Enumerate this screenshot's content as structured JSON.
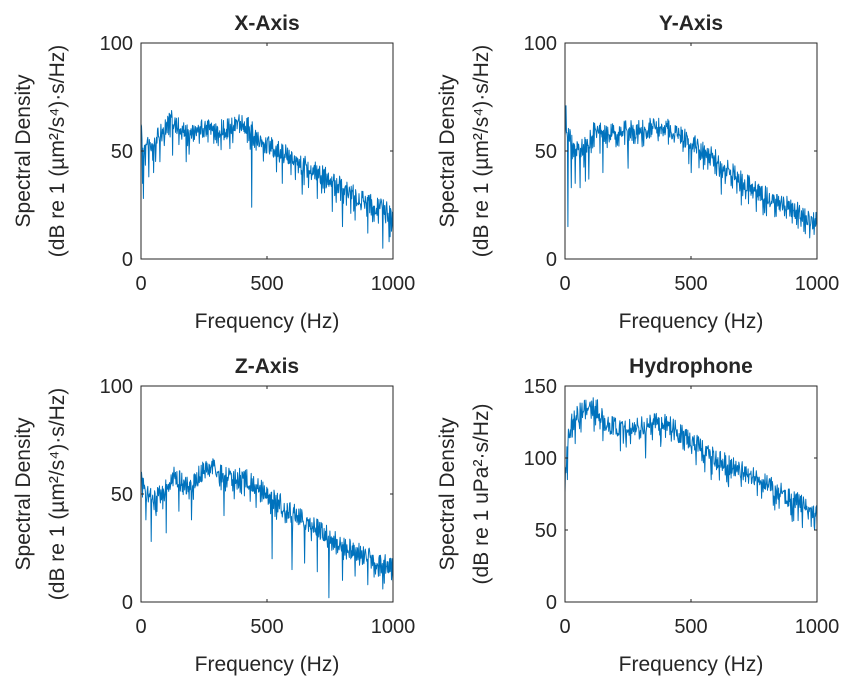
{
  "series_color": "#0072BD",
  "chart_data": [
    {
      "type": "line",
      "title": "X-Axis",
      "xlabel": "Frequency (Hz)",
      "ylabel_line1": "Spectral Density",
      "ylabel_line2": "(dB re 1 (µm²/s⁴)·s/Hz)",
      "xlim": [
        0,
        1000
      ],
      "ylim": [
        0,
        100
      ],
      "xticks": [
        0,
        500,
        1000
      ],
      "yticks": [
        0,
        50,
        100
      ],
      "grid": false,
      "profile": {
        "x": [
          0,
          5,
          15,
          30,
          60,
          90,
          110,
          130,
          160,
          200,
          250,
          300,
          350,
          400,
          420,
          450,
          500,
          550,
          600,
          650,
          700,
          750,
          800,
          850,
          900,
          950,
          1000
        ],
        "y": [
          62,
          55,
          50,
          53,
          55,
          60,
          66,
          64,
          60,
          58,
          61,
          60,
          61,
          63,
          62,
          58,
          53,
          50,
          47,
          44,
          40,
          37,
          33,
          30,
          27,
          24,
          20
        ]
      },
      "dips": [
        {
          "x": 5,
          "y": 35
        },
        {
          "x": 10,
          "y": 28
        },
        {
          "x": 30,
          "y": 38
        },
        {
          "x": 50,
          "y": 40
        },
        {
          "x": 75,
          "y": 45
        },
        {
          "x": 125,
          "y": 48
        },
        {
          "x": 180,
          "y": 45
        },
        {
          "x": 440,
          "y": 24
        },
        {
          "x": 560,
          "y": 35
        },
        {
          "x": 640,
          "y": 30
        },
        {
          "x": 700,
          "y": 28
        },
        {
          "x": 760,
          "y": 22
        },
        {
          "x": 800,
          "y": 15
        },
        {
          "x": 850,
          "y": 18
        },
        {
          "x": 900,
          "y": 12
        },
        {
          "x": 960,
          "y": 5
        },
        {
          "x": 985,
          "y": 8
        }
      ]
    },
    {
      "type": "line",
      "title": "Y-Axis",
      "xlabel": "Frequency (Hz)",
      "ylabel_line1": "Spectral Density",
      "ylabel_line2": "(dB re 1 (µm²/s⁴)·s/Hz)",
      "xlim": [
        0,
        1000
      ],
      "ylim": [
        0,
        100
      ],
      "xticks": [
        0,
        500,
        1000
      ],
      "yticks": [
        0,
        50,
        100
      ],
      "grid": false,
      "profile": {
        "x": [
          0,
          3,
          10,
          30,
          60,
          90,
          120,
          160,
          200,
          250,
          300,
          350,
          400,
          450,
          500,
          550,
          600,
          650,
          700,
          750,
          800,
          850,
          900,
          950,
          1000
        ],
        "y": [
          55,
          68,
          60,
          52,
          50,
          55,
          60,
          58,
          59,
          60,
          60,
          61,
          61,
          58,
          54,
          50,
          46,
          41,
          37,
          33,
          29,
          26,
          24,
          21,
          17
        ]
      },
      "dips": [
        {
          "x": 12,
          "y": 15
        },
        {
          "x": 25,
          "y": 33
        },
        {
          "x": 40,
          "y": 35
        },
        {
          "x": 60,
          "y": 33
        },
        {
          "x": 80,
          "y": 36
        },
        {
          "x": 95,
          "y": 37
        },
        {
          "x": 150,
          "y": 40
        },
        {
          "x": 250,
          "y": 42
        },
        {
          "x": 500,
          "y": 40
        },
        {
          "x": 620,
          "y": 30
        },
        {
          "x": 700,
          "y": 25
        },
        {
          "x": 760,
          "y": 22
        },
        {
          "x": 800,
          "y": 20
        },
        {
          "x": 870,
          "y": 20
        },
        {
          "x": 960,
          "y": 16
        }
      ]
    },
    {
      "type": "line",
      "title": "Z-Axis",
      "xlabel": "Frequency (Hz)",
      "ylabel_line1": "Spectral Density",
      "ylabel_line2": "(dB re 1 (µm²/s⁴)·s/Hz)",
      "xlim": [
        0,
        1000
      ],
      "ylim": [
        0,
        100
      ],
      "xticks": [
        0,
        500,
        1000
      ],
      "yticks": [
        0,
        50,
        100
      ],
      "grid": false,
      "profile": {
        "x": [
          0,
          5,
          20,
          50,
          80,
          100,
          130,
          150,
          180,
          220,
          260,
          280,
          300,
          350,
          400,
          450,
          500,
          550,
          600,
          650,
          700,
          750,
          800,
          850,
          900,
          950,
          1000
        ],
        "y": [
          62,
          55,
          50,
          47,
          50,
          55,
          60,
          57,
          53,
          58,
          62,
          64,
          60,
          58,
          58,
          55,
          50,
          46,
          42,
          38,
          34,
          30,
          27,
          24,
          21,
          19,
          16
        ]
      },
      "dips": [
        {
          "x": 20,
          "y": 38
        },
        {
          "x": 40,
          "y": 28
        },
        {
          "x": 60,
          "y": 40
        },
        {
          "x": 100,
          "y": 32
        },
        {
          "x": 150,
          "y": 42
        },
        {
          "x": 200,
          "y": 38
        },
        {
          "x": 330,
          "y": 40
        },
        {
          "x": 520,
          "y": 20
        },
        {
          "x": 600,
          "y": 15
        },
        {
          "x": 650,
          "y": 18
        },
        {
          "x": 700,
          "y": 14
        },
        {
          "x": 745,
          "y": 2
        },
        {
          "x": 800,
          "y": 10
        },
        {
          "x": 850,
          "y": 12
        },
        {
          "x": 900,
          "y": 8
        },
        {
          "x": 960,
          "y": 6
        }
      ]
    },
    {
      "type": "line",
      "title": "Hydrophone",
      "xlabel": "Frequency (Hz)",
      "ylabel_line1": "Spectral Density",
      "ylabel_line2": "(dB re 1 uPa²·s/Hz)",
      "xlim": [
        0,
        1000
      ],
      "ylim": [
        0,
        150
      ],
      "xticks": [
        0,
        500,
        1000
      ],
      "yticks": [
        0,
        50,
        100,
        150
      ],
      "grid": false,
      "profile": {
        "x": [
          0,
          5,
          15,
          30,
          60,
          100,
          130,
          160,
          200,
          250,
          300,
          350,
          400,
          450,
          500,
          550,
          600,
          650,
          700,
          750,
          800,
          850,
          900,
          950,
          1000
        ],
        "y": [
          78,
          100,
          120,
          125,
          132,
          136,
          134,
          124,
          122,
          120,
          122,
          126,
          124,
          118,
          112,
          106,
          100,
          96,
          92,
          88,
          82,
          77,
          72,
          67,
          60
        ]
      },
      "dips": [
        {
          "x": 10,
          "y": 85
        },
        {
          "x": 40,
          "y": 110
        },
        {
          "x": 150,
          "y": 112
        },
        {
          "x": 320,
          "y": 100
        },
        {
          "x": 380,
          "y": 108
        },
        {
          "x": 580,
          "y": 85
        },
        {
          "x": 650,
          "y": 80
        },
        {
          "x": 780,
          "y": 72
        },
        {
          "x": 850,
          "y": 65
        },
        {
          "x": 900,
          "y": 60
        },
        {
          "x": 990,
          "y": 50
        }
      ]
    }
  ]
}
